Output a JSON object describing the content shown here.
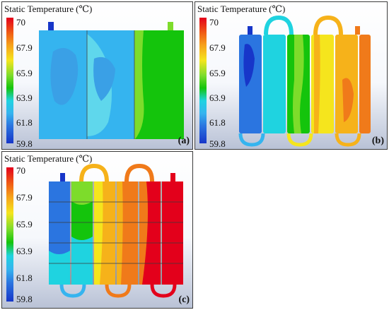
{
  "colorbar": {
    "title": "Static Temperature",
    "unit": "(℃)",
    "ticks": [
      "70",
      "67.9",
      "65.9",
      "63.9",
      "61.8",
      "59.8"
    ]
  },
  "panels": [
    {
      "label": "(a)"
    },
    {
      "label": "(b)"
    },
    {
      "label": "(c)"
    }
  ],
  "colors": {
    "red": "#e3001b",
    "orange": "#f07a1a",
    "yellow_orange": "#f6b21a",
    "yellow": "#f5e51d",
    "green": "#14c40c",
    "cyan": "#1fd3e0",
    "light_blue": "#35b4ef",
    "blue": "#2b75e0",
    "dark_blue": "#1736c9"
  }
}
